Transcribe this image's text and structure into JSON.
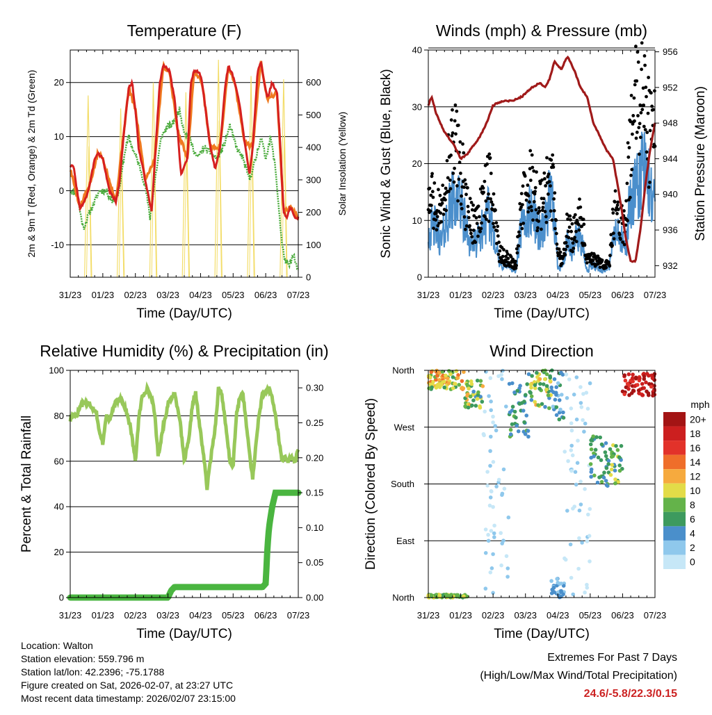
{
  "chart_data": [
    {
      "type": "line",
      "title": "Temperature (F)",
      "xlabel": "Time (Day/UTC)",
      "ylabel": "2m & 9m T (Red, Orange) & 2m Td (Green)",
      "y2label": "Solar Insolation (Yellow)",
      "ylim": [
        -16,
        26
      ],
      "y2lim": [
        0,
        700
      ],
      "yticks": [
        "-10",
        "0",
        "10",
        "20"
      ],
      "y2ticks": [
        "0",
        "100",
        "200",
        "300",
        "400",
        "500",
        "600"
      ],
      "xticks": [
        "31/23",
        "01/23",
        "02/23",
        "03/23",
        "04/23",
        "05/23",
        "06/23",
        "07/23"
      ],
      "grid_y": [
        -10,
        0,
        10,
        20
      ],
      "series": [
        {
          "name": "2m T",
          "color": "#d62020",
          "x": [
            0,
            0.1,
            0.3,
            0.5,
            0.6,
            0.75,
            0.85,
            1,
            1.2,
            1.4,
            1.5,
            1.7,
            1.8,
            1.9,
            2,
            2.1,
            2.3,
            2.5,
            2.6,
            2.75,
            2.85,
            2.95,
            3.05,
            3.2,
            3.3,
            3.4,
            3.6,
            3.7,
            3.8,
            3.95,
            4.05,
            4.15,
            4.3,
            4.45,
            4.6,
            4.75,
            4.85,
            4.95,
            5.05,
            5.2,
            5.35,
            5.5,
            5.6,
            5.75,
            5.85,
            5.95,
            6.05,
            6.2,
            6.35,
            6.45,
            6.55,
            6.65,
            6.75,
            6.9,
            7
          ],
          "values": [
            4.5,
            4.5,
            -3.5,
            -1,
            1,
            6,
            7,
            6,
            0,
            -2,
            1,
            14,
            19,
            20,
            15,
            8,
            2,
            -4,
            6,
            20,
            23,
            23,
            22,
            17,
            11,
            3,
            6,
            20,
            22,
            22,
            20,
            15,
            8,
            4,
            8,
            19,
            23,
            22,
            20,
            16,
            9,
            3,
            8,
            22,
            24,
            20,
            17,
            20,
            18,
            8,
            -4,
            -5,
            -3,
            -5,
            -5
          ]
        },
        {
          "name": "9m T",
          "color": "#f07a20",
          "x": [
            0,
            0.3,
            0.6,
            0.85,
            1,
            1.4,
            1.8,
            2,
            2.3,
            2.6,
            2.85,
            3.05,
            3.3,
            3.6,
            3.8,
            4.05,
            4.3,
            4.6,
            4.85,
            5.05,
            5.35,
            5.6,
            5.85,
            6.05,
            6.35,
            6.55,
            6.75,
            7
          ],
          "values": [
            4,
            -3,
            1,
            7,
            6,
            -2,
            19,
            15,
            2,
            6,
            23,
            22,
            11,
            6,
            22,
            20,
            8,
            8,
            23,
            20,
            9,
            8,
            24,
            17,
            18,
            -4,
            -3,
            -5
          ]
        },
        {
          "name": "2m Td",
          "color": "#4aab3c",
          "x": [
            0,
            0.2,
            0.4,
            0.6,
            0.9,
            1.1,
            1.3,
            1.5,
            1.7,
            1.8,
            1.9,
            2.1,
            2.3,
            2.45,
            2.6,
            2.8,
            3,
            3.1,
            3.2,
            3.35,
            3.5,
            3.7,
            3.9,
            4.1,
            4.3,
            4.5,
            4.7,
            4.9,
            5.1,
            5.3,
            5.5,
            5.7,
            5.85,
            6,
            6.15,
            6.3,
            6.4,
            6.5,
            6.6,
            6.7,
            6.85,
            7
          ],
          "values": [
            0,
            -0.5,
            -7,
            -4,
            0,
            0,
            -2,
            0,
            8,
            10,
            8,
            5,
            1,
            -5,
            2,
            10,
            12,
            12,
            13,
            15,
            11,
            9,
            6,
            8,
            7,
            6,
            8,
            12,
            8,
            6,
            2,
            6,
            10,
            6,
            10,
            4,
            -3,
            -10,
            -13,
            -14,
            -12,
            -15
          ]
        },
        {
          "name": "Solar Insolation",
          "color": "#f3dd6a",
          "axis": "y2",
          "day_peaks": [
            0.55,
            1.55,
            2.55,
            3.55,
            4.55,
            5.55,
            6.55
          ],
          "peak_values": [
            560,
            520,
            600,
            570,
            670,
            620,
            610
          ]
        }
      ]
    },
    {
      "type": "line",
      "title": "Winds (mph) & Pressure (mb)",
      "xlabel": "Time (Day/UTC)",
      "ylabel": "Sonic Wind & Gust (Blue, Black)",
      "y2label": "Station Pressure (Maroon)",
      "ylim": [
        0,
        40
      ],
      "y2lim": [
        930.7,
        956.2
      ],
      "yticks": [
        "0",
        "10",
        "20",
        "30",
        "40"
      ],
      "y2ticks": [
        "932",
        "936",
        "940",
        "944",
        "948",
        "952",
        "956"
      ],
      "xticks": [
        "31/23",
        "01/23",
        "02/23",
        "03/23",
        "04/23",
        "05/23",
        "06/23",
        "07/23"
      ],
      "grid_y": [
        10,
        20,
        30,
        40
      ],
      "series": [
        {
          "name": "Wind",
          "color": "#4b8fcc",
          "x": [
            0,
            0.2,
            0.4,
            0.6,
            0.8,
            1,
            1.15,
            1.3,
            1.5,
            1.7,
            1.85,
            2,
            2.2,
            2.5,
            2.7,
            2.85,
            3,
            3.2,
            3.4,
            3.6,
            3.75,
            3.9,
            4,
            4.15,
            4.3,
            4.45,
            4.6,
            4.75,
            4.9,
            5,
            5.2,
            5.4,
            5.6,
            5.75,
            5.9,
            6.1,
            6.2,
            6.35,
            6.5,
            6.6,
            6.7,
            6.85,
            7
          ],
          "values": [
            8,
            9,
            6,
            11,
            14,
            13,
            9,
            6,
            6,
            9,
            11,
            9,
            2,
            2,
            1,
            8,
            10,
            12,
            8,
            9,
            14,
            10,
            2,
            2,
            6,
            4,
            8,
            6,
            1,
            2,
            2,
            1,
            2,
            8,
            7,
            5,
            12,
            14,
            16,
            20,
            18,
            15,
            14
          ]
        },
        {
          "name": "Gust",
          "color": "#000000",
          "x": [
            0,
            0.2,
            0.4,
            0.6,
            0.8,
            1,
            1.15,
            1.3,
            1.5,
            1.7,
            1.85,
            2,
            2.2,
            2.5,
            2.7,
            2.85,
            3,
            3.2,
            3.4,
            3.6,
            3.75,
            3.9,
            4,
            4.15,
            4.3,
            4.45,
            4.6,
            4.75,
            4.9,
            5,
            5.2,
            5.4,
            5.6,
            5.75,
            5.9,
            6.1,
            6.2,
            6.35,
            6.5,
            6.6,
            6.7,
            6.85,
            7
          ],
          "values": [
            13,
            14,
            10,
            18,
            23,
            20,
            13,
            10,
            10,
            13,
            16,
            14,
            4,
            3,
            2,
            12,
            14,
            17,
            12,
            14,
            18,
            14,
            4,
            3,
            9,
            7,
            11,
            9,
            3,
            3,
            3,
            2,
            3,
            12,
            10,
            8,
            22,
            28,
            31,
            33,
            28,
            25,
            24
          ]
        },
        {
          "name": "Station Pressure",
          "color": "#a01a1a",
          "axis": "y2",
          "x": [
            0,
            0.1,
            0.25,
            0.5,
            0.8,
            1,
            1.2,
            1.4,
            1.6,
            1.8,
            2,
            2.3,
            2.6,
            2.9,
            3.2,
            3.45,
            3.6,
            3.75,
            3.9,
            4.1,
            4.3,
            4.5,
            4.7,
            4.9,
            5.1,
            5.3,
            5.5,
            5.7,
            5.9,
            6.1,
            6.25,
            6.4,
            6.55,
            6.7,
            6.85,
            7
          ],
          "values": [
            950,
            951,
            949,
            947,
            945.5,
            944,
            944.5,
            945.5,
            946.5,
            948,
            950,
            950.5,
            950.5,
            951,
            952,
            952.5,
            952,
            953,
            955,
            954,
            955.5,
            954,
            952,
            951,
            948,
            946.5,
            945,
            944,
            940,
            935,
            932.5,
            932.5,
            936,
            941,
            945,
            948
          ]
        }
      ]
    },
    {
      "type": "line",
      "title": "Relative Humidity (%) & Precipitation (in)",
      "xlabel": "Time (Day/UTC)",
      "ylabel": "Percent & Total Rainfall",
      "ylim": [
        0,
        100
      ],
      "y2lim": [
        0,
        0.325
      ],
      "yticks": [
        "0",
        "20",
        "40",
        "60",
        "80",
        "100"
      ],
      "y2ticks": [
        "0.00",
        "0.05",
        "0.10",
        "0.15",
        "0.20",
        "0.25",
        "0.30"
      ],
      "xticks": [
        "31/23",
        "01/23",
        "02/23",
        "03/23",
        "04/23",
        "05/23",
        "06/23",
        "07/23"
      ],
      "grid_y": [
        20,
        40,
        60,
        80
      ],
      "series": [
        {
          "name": "Relative Humidity",
          "color": "#98c85a",
          "x": [
            0,
            0.1,
            0.2,
            0.3,
            0.4,
            0.6,
            0.8,
            0.9,
            1,
            1.1,
            1.2,
            1.4,
            1.55,
            1.7,
            1.85,
            2,
            2.1,
            2.2,
            2.35,
            2.5,
            2.6,
            2.7,
            2.85,
            3,
            3.2,
            3.35,
            3.5,
            3.65,
            3.75,
            3.85,
            3.95,
            4.1,
            4.2,
            4.3,
            4.45,
            4.55,
            4.65,
            4.75,
            4.9,
            5,
            5.1,
            5.2,
            5.3,
            5.45,
            5.6,
            5.75,
            5.9,
            6,
            6.1,
            6.2,
            6.3,
            6.4,
            6.5,
            6.6,
            6.7,
            6.8,
            6.9,
            7
          ],
          "values": [
            78,
            81,
            80,
            84,
            86,
            85,
            82,
            72,
            68,
            80,
            78,
            86,
            88,
            83,
            75,
            60,
            78,
            88,
            92,
            88,
            80,
            62,
            75,
            85,
            90,
            80,
            60,
            70,
            85,
            90,
            78,
            62,
            48,
            60,
            75,
            92,
            90,
            78,
            60,
            58,
            80,
            88,
            90,
            70,
            52,
            75,
            90,
            90,
            92,
            88,
            80,
            70,
            60,
            62,
            60,
            62,
            60,
            65
          ]
        },
        {
          "name": "Total Precipitation",
          "color": "#4ab540",
          "axis": "y2",
          "x": [
            0,
            0.5,
            1,
            1.5,
            2,
            2.5,
            2.9,
            3,
            3.05,
            3.1,
            3.2,
            3.5,
            4,
            4.5,
            5,
            5.5,
            5.9,
            6,
            6.02,
            6.05,
            6.1,
            6.2,
            6.3,
            6.5,
            6.7,
            7
          ],
          "values": [
            0,
            0,
            0,
            0,
            0,
            0,
            0,
            0,
            0.005,
            0.01,
            0.015,
            0.015,
            0.015,
            0.015,
            0.015,
            0.015,
            0.015,
            0.02,
            0.04,
            0.07,
            0.1,
            0.13,
            0.15,
            0.15,
            0.15,
            0.15
          ]
        }
      ]
    },
    {
      "type": "scatter",
      "title": "Wind Direction",
      "xlabel": "Time (Day/UTC)",
      "ylabel": "Direction (Colored By Speed)",
      "ylim": [
        0,
        360
      ],
      "yticks": [
        "North",
        "East",
        "South",
        "West",
        "North"
      ],
      "xticks": [
        "31/23",
        "01/23",
        "02/23",
        "03/23",
        "04/23",
        "05/23",
        "06/23",
        "07/23"
      ],
      "grid_y": [
        90,
        180,
        270
      ],
      "colorbar": {
        "title": "mph",
        "labels": [
          "0",
          "2",
          "4",
          "6",
          "8",
          "10",
          "12",
          "14",
          "16",
          "18",
          "20+"
        ],
        "colors": [
          "#c6e7f7",
          "#8fc8ec",
          "#4a8fcb",
          "#3d9a5e",
          "#64b34a",
          "#e3dc48",
          "#f6aa3e",
          "#ef6e2a",
          "#e2322a",
          "#cc1f1f",
          "#a31414"
        ]
      },
      "clusters": [
        {
          "x": [
            0,
            1.1
          ],
          "dir": [
            330,
            360
          ],
          "speed": [
            6,
            14
          ]
        },
        {
          "x": [
            0,
            1.2
          ],
          "dir": [
            0,
            5
          ],
          "speed": [
            6,
            10
          ]
        },
        {
          "x": [
            1.1,
            1.7
          ],
          "dir": [
            300,
            345
          ],
          "speed": [
            4,
            12
          ]
        },
        {
          "x": [
            1.7,
            2.5
          ],
          "dir": [
            0,
            360
          ],
          "speed": [
            0,
            2
          ]
        },
        {
          "x": [
            2.5,
            3.1
          ],
          "dir": [
            250,
            340
          ],
          "speed": [
            3,
            8
          ]
        },
        {
          "x": [
            3.1,
            3.8
          ],
          "dir": [
            300,
            360
          ],
          "speed": [
            4,
            12
          ]
        },
        {
          "x": [
            3.8,
            4.2
          ],
          "dir": [
            280,
            360
          ],
          "speed": [
            2,
            6
          ]
        },
        {
          "x": [
            3.8,
            4.2
          ],
          "dir": [
            0,
            30
          ],
          "speed": [
            2,
            4
          ]
        },
        {
          "x": [
            4.2,
            5.0
          ],
          "dir": [
            0,
            360
          ],
          "speed": [
            0,
            2
          ]
        },
        {
          "x": [
            5.0,
            5.5
          ],
          "dir": [
            180,
            260
          ],
          "speed": [
            4,
            8
          ]
        },
        {
          "x": [
            5.5,
            6.0
          ],
          "dir": [
            170,
            250
          ],
          "speed": [
            4,
            10
          ]
        },
        {
          "x": [
            6.0,
            7.0
          ],
          "dir": [
            320,
            355
          ],
          "speed": [
            16,
            22
          ]
        }
      ]
    }
  ],
  "info": {
    "location": "Location: Walton",
    "elevation": "Station elevation: 559.796 m",
    "latlon": "Station lat/lon: 42.2396; -75.1788",
    "created": "Figure created on Sat, 2026-02-07, at 23:27 UTC",
    "recent": "Most recent data timestamp: 2026/02/07 23:15:00"
  },
  "extremes": {
    "title": "Extremes For Past 7 Days",
    "subtitle": "(High/Low/Max Wind/Total Precipitation)",
    "values": "24.6/-5.8/22.3/0.15",
    "values_color": "#cc2222"
  }
}
